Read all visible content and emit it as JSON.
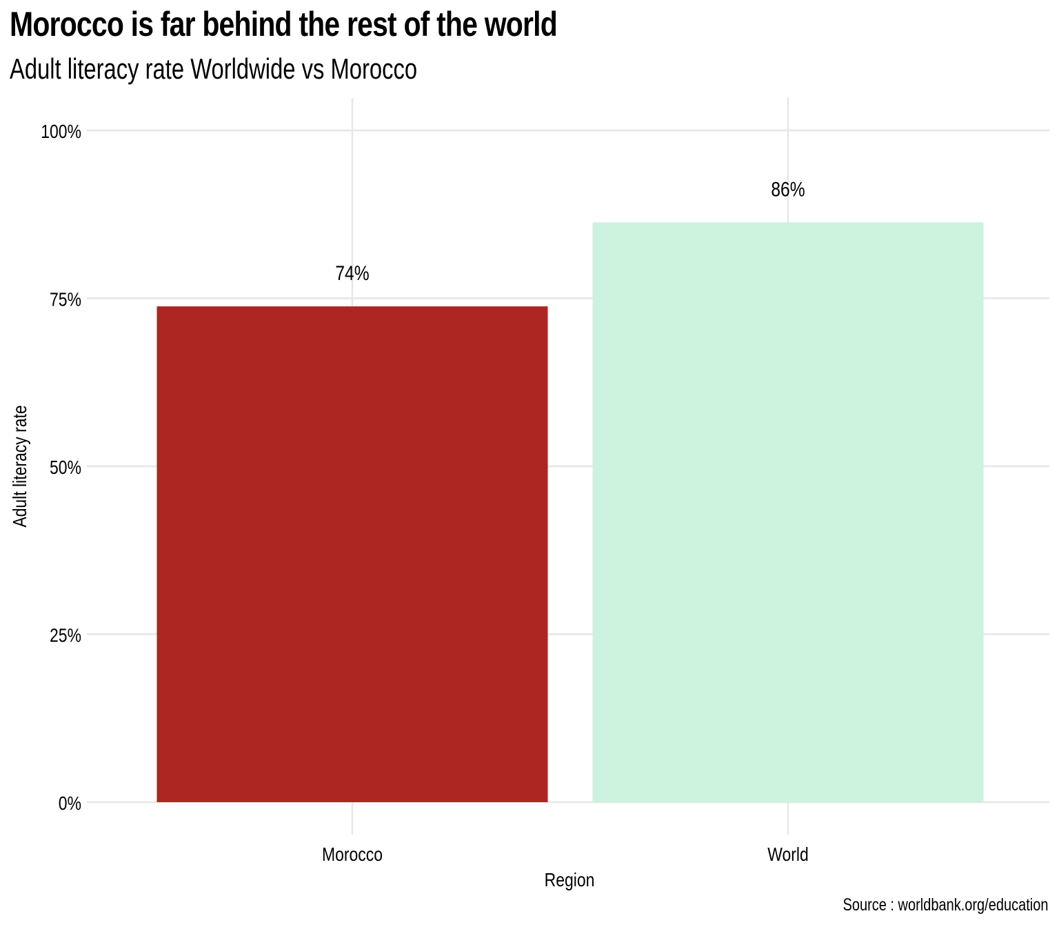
{
  "title": "Morocco is far behind the rest of the world",
  "subtitle": "Adult literacy rate Worldwide vs Morocco",
  "caption": "Source : worldbank.org/education",
  "chart_data": {
    "type": "bar",
    "categories": [
      "Morocco",
      "World"
    ],
    "values": [
      73.8,
      86.3
    ],
    "value_labels": [
      "74%",
      "86%"
    ],
    "colors": [
      "#AD2621",
      "#CDF2DE"
    ],
    "xlabel": "Region",
    "ylabel": "Adult literacy rate",
    "ylim": [
      0,
      100
    ],
    "yticks": [
      0,
      25,
      50,
      75,
      100
    ],
    "ytick_labels": [
      "0%",
      "25%",
      "50%",
      "75%",
      "100%"
    ],
    "grid": true,
    "grid_color": "#E6E6E6"
  }
}
